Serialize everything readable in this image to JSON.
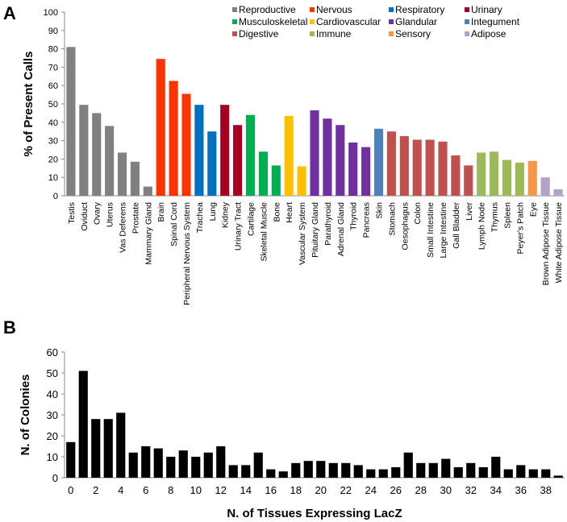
{
  "chart_data": [
    {
      "type": "bar",
      "panel_label": "A",
      "ylabel": "% of Present Calls",
      "xlabel": "",
      "ylim": [
        0,
        100
      ],
      "yticks": [
        0,
        10,
        20,
        30,
        40,
        50,
        60,
        70,
        80,
        90,
        100
      ],
      "legend_placement": "top-right",
      "legend": [
        {
          "name": "Reproductive",
          "color": "#808080"
        },
        {
          "name": "Nervous",
          "color": "#ff3300"
        },
        {
          "name": "Respiratory",
          "color": "#0070c0"
        },
        {
          "name": "Urinary",
          "color": "#a50021"
        },
        {
          "name": "Musculoskeletal",
          "color": "#00b050"
        },
        {
          "name": "Cardiovascular",
          "color": "#ffc000"
        },
        {
          "name": "Glandular",
          "color": "#7030a0"
        },
        {
          "name": "Integument",
          "color": "#4f81bd"
        },
        {
          "name": "Digestive",
          "color": "#c0504d"
        },
        {
          "name": "Immune",
          "color": "#9bbb59"
        },
        {
          "name": "Sensory",
          "color": "#f79646"
        },
        {
          "name": "Adipose",
          "color": "#b3a2c7"
        }
      ],
      "categories": [
        "Testis",
        "Oviduct",
        "Ovary",
        "Uterus",
        "Vas Deferens",
        "Prostate",
        "Mammary Gland",
        "Brain",
        "Spinal Cord",
        "Peripheral Nervous System",
        "Trachea",
        "Lung",
        "Kidney",
        "Urinary Tract",
        "Cartilage",
        "Skeletal Muscle",
        "Bone",
        "Heart",
        "Vascular System",
        "Pituitary Gland",
        "Parathyroid",
        "Adrenal Gland",
        "Thyroid",
        "Pancreas",
        "Skin",
        "Stomach",
        "Oesophagus",
        "Colon",
        "Small Intestine",
        "Large Intestine",
        "Gall Bladder",
        "Liver",
        "Lymph Node",
        "Thymus",
        "Spleen",
        "Peyer's Patch",
        "Eye",
        "Brown Adipose Tissue",
        "White Adipose Tissue"
      ],
      "groups": [
        0,
        0,
        0,
        0,
        0,
        0,
        0,
        1,
        1,
        1,
        2,
        2,
        3,
        3,
        4,
        4,
        4,
        5,
        5,
        6,
        6,
        6,
        6,
        6,
        7,
        8,
        8,
        8,
        8,
        8,
        8,
        8,
        9,
        9,
        9,
        9,
        10,
        11,
        11
      ],
      "values": [
        81,
        49.5,
        45,
        38,
        23.5,
        18.5,
        5,
        74.5,
        62.5,
        55.5,
        49.5,
        35,
        49.5,
        38.5,
        44,
        24,
        16.5,
        43.5,
        16,
        46.5,
        42,
        38.5,
        29,
        26.5,
        36.5,
        35,
        32.5,
        30.5,
        30.5,
        29.5,
        22,
        16.5,
        23.5,
        24,
        19.5,
        18,
        19,
        10,
        3.5
      ]
    },
    {
      "type": "bar",
      "panel_label": "B",
      "ylabel": "N. of Colonies",
      "xlabel": "N. of Tissues Expressing LacZ",
      "ylim": [
        0,
        60
      ],
      "yticks": [
        0,
        10,
        20,
        30,
        40,
        50,
        60
      ],
      "xticks": [
        0,
        2,
        4,
        6,
        8,
        10,
        12,
        14,
        16,
        18,
        20,
        22,
        24,
        26,
        28,
        30,
        32,
        34,
        36,
        38
      ],
      "color": "#000000",
      "x": [
        0,
        1,
        2,
        3,
        4,
        5,
        6,
        7,
        8,
        9,
        10,
        11,
        12,
        13,
        14,
        15,
        16,
        17,
        18,
        19,
        20,
        21,
        22,
        23,
        24,
        25,
        26,
        27,
        28,
        29,
        30,
        31,
        32,
        33,
        34,
        35,
        36,
        37,
        38,
        39
      ],
      "values": [
        17,
        51,
        28,
        28,
        31,
        12,
        15,
        14,
        10,
        13,
        10,
        12,
        15,
        6,
        6,
        12,
        4,
        3,
        7,
        8,
        8,
        7,
        7,
        6,
        4,
        4,
        5,
        12,
        7,
        7,
        9,
        5,
        7,
        5,
        10,
        4,
        6,
        4,
        4,
        1
      ]
    }
  ]
}
